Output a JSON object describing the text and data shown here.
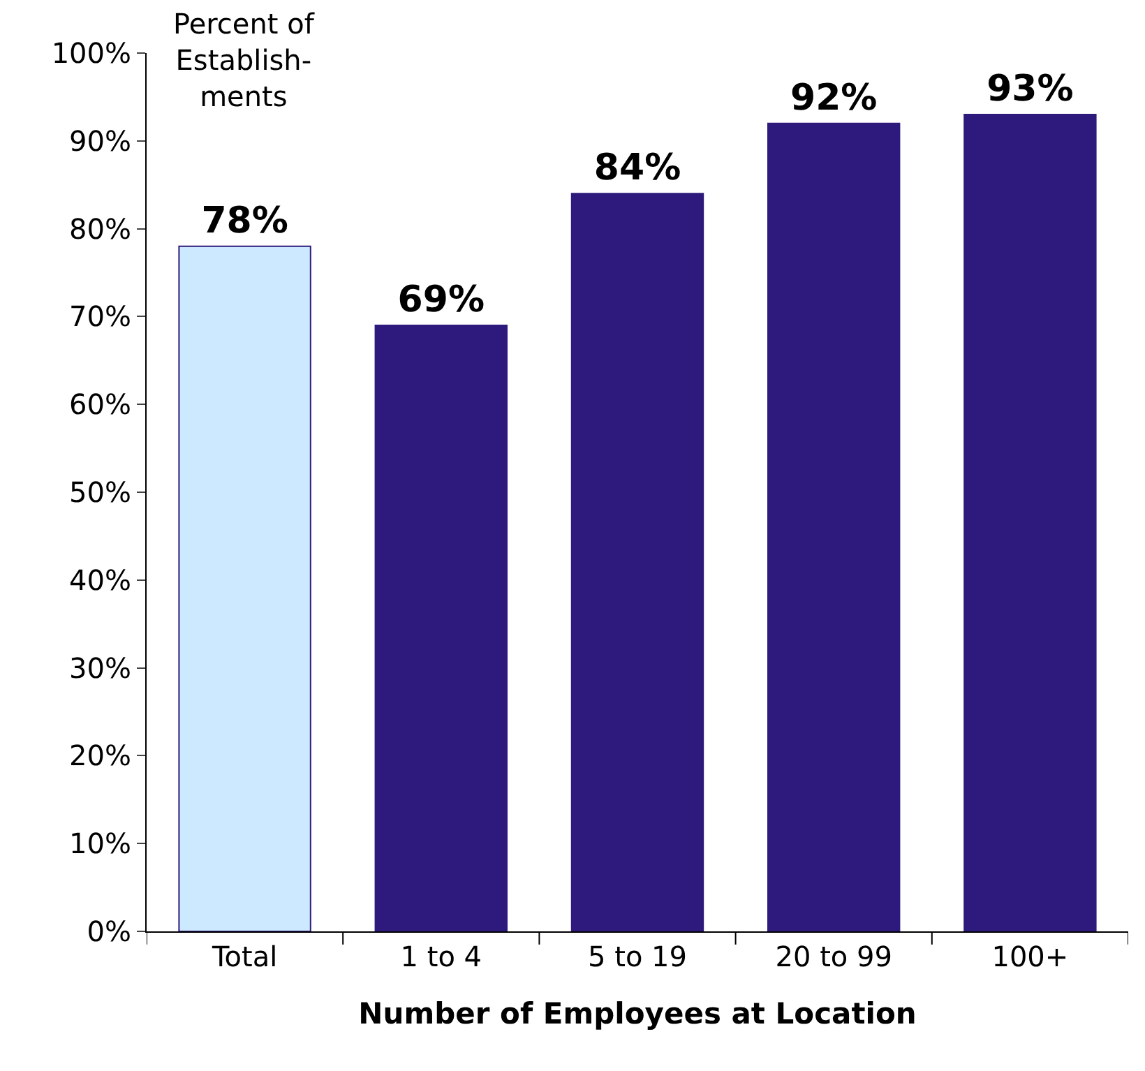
{
  "chart_data": {
    "type": "bar",
    "ylabel": "Percent of\nEstablish-\nments",
    "xlabel": "Number of Employees at Location",
    "categories": [
      "Total",
      "1 to 4",
      "5 to 19",
      "20 to 99",
      "100+"
    ],
    "values": [
      78,
      69,
      84,
      92,
      93
    ],
    "colors": [
      "#cce9ff",
      "#2e1a7c",
      "#2e1a7c",
      "#2e1a7c",
      "#2e1a7c"
    ],
    "value_labels": [
      "78%",
      "69%",
      "84%",
      "92%",
      "93%"
    ],
    "ylim": [
      0,
      100
    ],
    "yticks": [
      {
        "value": 0,
        "label": "0%"
      },
      {
        "value": 10,
        "label": "10%"
      },
      {
        "value": 20,
        "label": "20%"
      },
      {
        "value": 30,
        "label": "30%"
      },
      {
        "value": 40,
        "label": "40%"
      },
      {
        "value": 50,
        "label": "50%"
      },
      {
        "value": 60,
        "label": "60%"
      },
      {
        "value": 70,
        "label": "70%"
      },
      {
        "value": 80,
        "label": "80%"
      },
      {
        "value": 90,
        "label": "90%"
      },
      {
        "value": 100,
        "label": "100%"
      }
    ]
  }
}
